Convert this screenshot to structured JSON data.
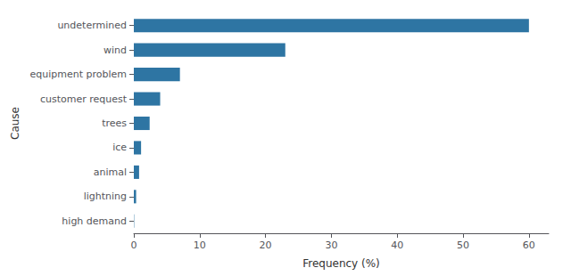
{
  "chart_data": {
    "type": "bar",
    "orientation": "horizontal",
    "categories": [
      "high demand",
      "lightning",
      "animal",
      "ice",
      "trees",
      "customer request",
      "equipment problem",
      "wind",
      "undetermined"
    ],
    "values": [
      0.05,
      0.35,
      0.8,
      1.1,
      2.4,
      4.0,
      7.0,
      23.0,
      60.0
    ],
    "color": "#2e75a3",
    "xlabel": "Frequency (%)",
    "ylabel": "Cause",
    "xlim": [
      0,
      63
    ],
    "xticks": [
      0,
      10,
      20,
      30,
      40,
      50,
      60
    ],
    "grid": false
  }
}
